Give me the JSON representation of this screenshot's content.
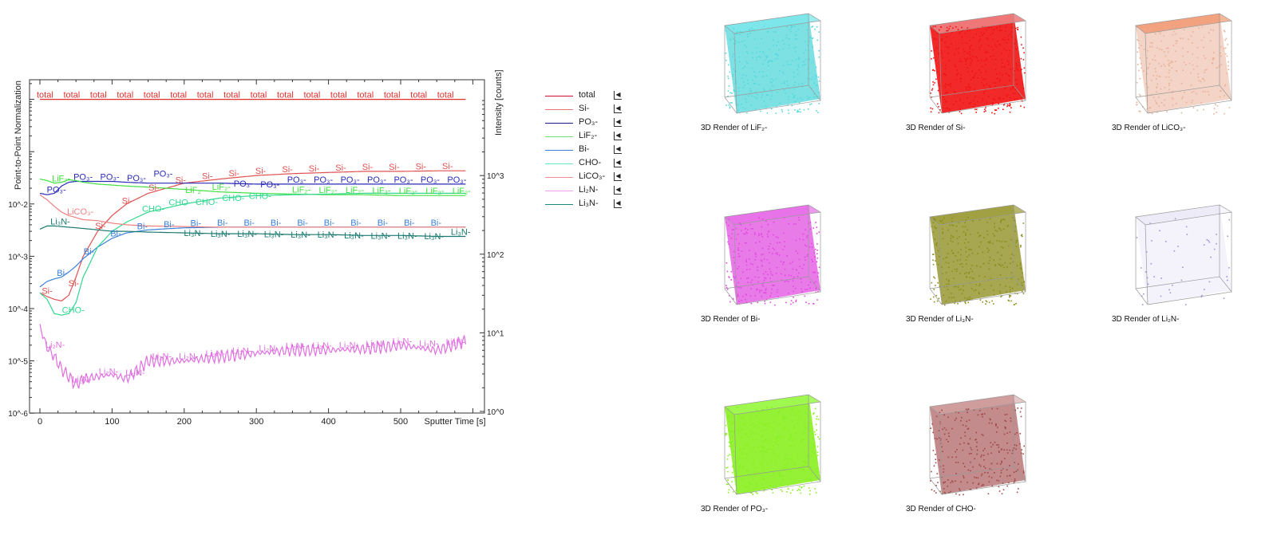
{
  "chart_data": {
    "type": "line",
    "ylabel_left": "Point-to-Point Normalization",
    "ylabel_right": "Intensity [counts]",
    "xlabel": "Sputter Time [s]",
    "xticks": [
      0,
      100,
      200,
      300,
      400,
      500
    ],
    "xlim": [
      -5,
      605
    ],
    "ylim_left": [
      1e-06,
      2.3
    ],
    "yscale": "log",
    "yticks_left": [
      "10^-6",
      "10^-5",
      "10^-4",
      "10^-3",
      "10^-2",
      "10^-1",
      "10^0"
    ],
    "yticks_right": [
      "10^0",
      "10^1",
      "10^2",
      "10^3"
    ],
    "x": [
      0,
      10,
      20,
      30,
      40,
      50,
      60,
      80,
      100,
      120,
      150,
      200,
      250,
      300,
      350,
      400,
      450,
      500,
      550,
      590
    ],
    "series": [
      {
        "name": "total",
        "label": "total",
        "color": "#e0302c",
        "values": [
          1,
          1,
          1,
          1,
          1,
          1,
          1,
          1,
          1,
          1,
          1,
          1,
          1,
          1,
          1,
          1,
          1,
          1,
          1,
          1
        ]
      },
      {
        "name": "Si-",
        "label": "Si-",
        "color": "#e05050",
        "values": [
          0.0002,
          0.00017,
          0.00015,
          0.00014,
          0.00018,
          0.0004,
          0.001,
          0.003,
          0.006,
          0.01,
          0.016,
          0.025,
          0.03,
          0.035,
          0.038,
          0.04,
          0.042,
          0.042,
          0.043,
          0.043
        ]
      },
      {
        "name": "PO3-",
        "label": "PO₃-",
        "color": "#2a2ab8",
        "values": [
          0.016,
          0.015,
          0.016,
          0.022,
          0.026,
          0.027,
          0.027,
          0.027,
          0.027,
          0.026,
          0.025,
          0.025,
          0.025,
          0.024,
          0.024,
          0.024,
          0.024,
          0.024,
          0.024,
          0.024
        ]
      },
      {
        "name": "LiF2-",
        "label": "LiF₂-",
        "color": "#40e040",
        "values": [
          0.03,
          0.028,
          0.025,
          0.026,
          0.029,
          0.028,
          0.026,
          0.024,
          0.023,
          0.022,
          0.021,
          0.019,
          0.017,
          0.016,
          0.0155,
          0.015,
          0.015,
          0.0145,
          0.0145,
          0.0145
        ]
      },
      {
        "name": "Bi-",
        "label": "Bi-",
        "color": "#3a80d8",
        "values": [
          0.00026,
          0.00033,
          0.00037,
          0.0004,
          0.0005,
          0.00065,
          0.0009,
          0.0015,
          0.0022,
          0.0028,
          0.0032,
          0.0035,
          0.0036,
          0.0036,
          0.0036,
          0.0036,
          0.0036,
          0.0036,
          0.0036,
          0.0036
        ]
      },
      {
        "name": "CHO-",
        "label": "CHO-",
        "color": "#30d890",
        "values": [
          0.0002,
          0.00015,
          8e-05,
          7.5e-05,
          8e-05,
          0.00013,
          0.0004,
          0.0015,
          0.003,
          0.0045,
          0.007,
          0.01,
          0.013,
          0.0145,
          0.015,
          0.0155,
          0.016,
          0.016,
          0.016,
          0.016
        ]
      },
      {
        "name": "LiCO3-",
        "label": "LiCO₃-",
        "color": "#f08080",
        "values": [
          0.015,
          0.012,
          0.009,
          0.007,
          0.006,
          0.0055,
          0.005,
          0.0048,
          0.0043,
          0.004,
          0.0038,
          0.0037,
          0.0036,
          0.0036,
          0.0036,
          0.0036,
          0.0036,
          0.0036,
          0.0036,
          0.0036
        ]
      },
      {
        "name": "Li2N-",
        "label": "Li₂N-",
        "color": "#e070e0",
        "values": [
          4.5e-05,
          1.8e-05,
          1.2e-05,
          7e-06,
          5e-06,
          3.5e-06,
          4.5e-06,
          5e-06,
          5.5e-06,
          4.5e-06,
          1e-05,
          1e-05,
          1.2e-05,
          1.4e-05,
          1.6e-05,
          1.6e-05,
          1.7e-05,
          2e-05,
          1.6e-05,
          2.4e-05
        ]
      },
      {
        "name": "Li3N-",
        "label": "Li₃N-",
        "color": "#1a7a70",
        "values": [
          0.0033,
          0.0038,
          0.0038,
          0.0037,
          0.0036,
          0.0035,
          0.0034,
          0.0032,
          0.003,
          0.003,
          0.0029,
          0.0028,
          0.0027,
          0.0027,
          0.0026,
          0.0026,
          0.0025,
          0.0025,
          0.0024,
          0.0024
        ]
      }
    ]
  },
  "legend": [
    {
      "label": "total",
      "color": "#c8102e"
    },
    {
      "label": "Si-",
      "color": "#e07878"
    },
    {
      "label": "PO₃-",
      "color": "#1a1a8a"
    },
    {
      "label": "LiF₂-",
      "color": "#70e070"
    },
    {
      "label": "Bi-",
      "color": "#3a80d8"
    },
    {
      "label": "CHO-",
      "color": "#60e8c8"
    },
    {
      "label": "LiCO₃-",
      "color": "#f09090"
    },
    {
      "label": "Li₂N-",
      "color": "#f0a0f0"
    },
    {
      "label": "Li₃N-",
      "color": "#1a8a80"
    }
  ],
  "legend_button": "◀",
  "renders": [
    {
      "caption": "3D Render of LiF₂-",
      "color": "#55d8dc",
      "top": "#7ee8ec",
      "density": 0.85
    },
    {
      "caption": "3D Render of Si-",
      "color": "#f01212",
      "top": "#f08080",
      "density": 1
    },
    {
      "caption": "3D Render of LiCO₃-",
      "color": "#e8b098",
      "top": "#f07840",
      "density": 0.6
    },
    {
      "caption": "3D Render of Bi-",
      "color": "#e048e0",
      "top": "#e870e8",
      "density": 0.8
    },
    {
      "caption": "3D Render of Li₃N-",
      "color": "#8c8c1c",
      "top": "#a0a040",
      "density": 0.85
    },
    {
      "caption": "3D Render of Li₂N-",
      "color": "#9c94d8",
      "top": "#b8b0e8",
      "density": 0.12
    },
    {
      "caption": "3D Render of PO₃-",
      "color": "#88f020",
      "top": "#a0f850",
      "density": 1
    },
    {
      "caption": "3D Render of CHO-",
      "color": "#a04848",
      "top": "#d8a8a8",
      "density": 0.7
    }
  ]
}
